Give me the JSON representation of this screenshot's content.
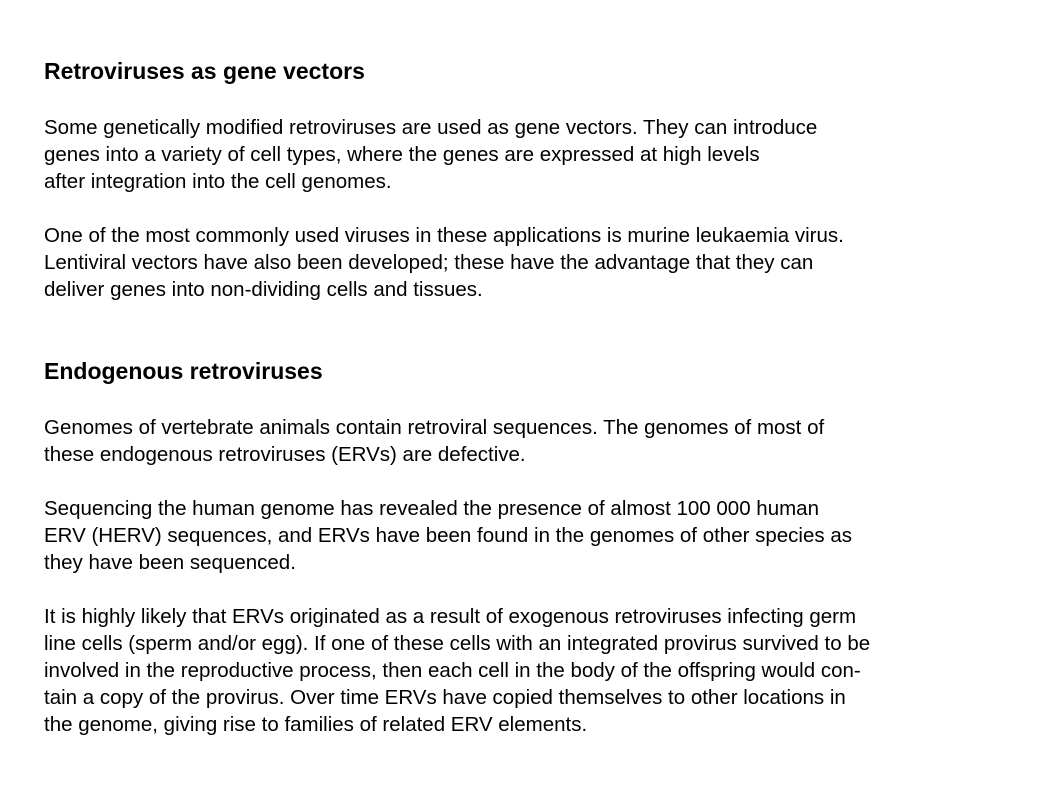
{
  "sections": [
    {
      "heading": "Retroviruses as gene vectors",
      "paragraphs": [
        {
          "lines": [
            "Some genetically modified retroviruses are used as gene vectors. They can introduce",
            "genes into a variety of cell types, where the genes are expressed at high levels",
            "after integration into the cell genomes."
          ]
        },
        {
          "lines": [
            "One of the most commonly used viruses in these applications is murine leukaemia virus.",
            "Lentiviral vectors have also been developed; these have the advantage that they can",
            "deliver genes into non-dividing cells and tissues."
          ]
        }
      ]
    },
    {
      "heading": "Endogenous retroviruses",
      "paragraphs": [
        {
          "lines": [
            "Genomes of vertebrate animals contain retroviral sequences. The genomes of most of",
            "these endogenous retroviruses (ERVs) are defective."
          ]
        },
        {
          "lines": [
            "Sequencing the human genome has revealed the presence of almost 100 000 human",
            "ERV (HERV) sequences, and ERVs have been found in the genomes of other species as",
            "they have been sequenced."
          ]
        },
        {
          "lines": [
            "It is highly likely that ERVs originated as a result of exogenous retroviruses infecting germ",
            "line cells (sperm and/or egg). If one of these cells with an integrated provirus survived to be",
            "involved in the reproductive process, then each cell in the body of the offspring would con-",
            "tain a copy of the provirus. Over time ERVs have copied themselves to other locations in",
            "the genome, giving rise to families of related ERV elements."
          ]
        }
      ]
    }
  ]
}
